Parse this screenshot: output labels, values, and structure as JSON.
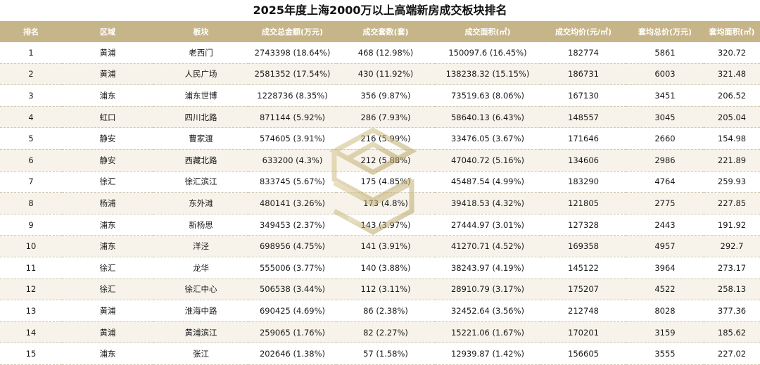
{
  "title": "2025年度上海2000万以上高端新房成交板块排名",
  "colors": {
    "header_bg": "#c7b58a",
    "stripe": "#f7f3ea",
    "watermark": "#c2ad6e"
  },
  "chart_data": {
    "type": "table",
    "title": "2025年度上海2000万以上高端新房成交板块排名",
    "columns": [
      "排名",
      "区域",
      "板块",
      "成交总金额(万元)",
      "成交套数(套)",
      "成交面积(㎡)",
      "成交均价(元/㎡)",
      "套均总价(万元)",
      "套均面积(㎡)"
    ],
    "rows": [
      [
        "1",
        "黄浦",
        "老西门",
        "2743398 (18.64%)",
        "468 (12.98%)",
        "150097.6 (16.45%)",
        "182774",
        "5861",
        "320.72"
      ],
      [
        "2",
        "黄浦",
        "人民广场",
        "2581352 (17.54%)",
        "430 (11.92%)",
        "138238.32 (15.15%)",
        "186731",
        "6003",
        "321.48"
      ],
      [
        "3",
        "浦东",
        "浦东世博",
        "1228736 (8.35%)",
        "356 (9.87%)",
        "73519.63 (8.06%)",
        "167130",
        "3451",
        "206.52"
      ],
      [
        "4",
        "虹口",
        "四川北路",
        "871144 (5.92%)",
        "286 (7.93%)",
        "58640.13 (6.43%)",
        "148557",
        "3045",
        "205.04"
      ],
      [
        "5",
        "静安",
        "曹家渡",
        "574605 (3.91%)",
        "216 (5.99%)",
        "33476.05 (3.67%)",
        "171646",
        "2660",
        "154.98"
      ],
      [
        "6",
        "静安",
        "西藏北路",
        "633200 (4.3%)",
        "212 (5.88%)",
        "47040.72 (5.16%)",
        "134606",
        "2986",
        "221.89"
      ],
      [
        "7",
        "徐汇",
        "徐汇滨江",
        "833745 (5.67%)",
        "175 (4.85%)",
        "45487.54 (4.99%)",
        "183290",
        "4764",
        "259.93"
      ],
      [
        "8",
        "杨浦",
        "东外滩",
        "480141 (3.26%)",
        "173 (4.8%)",
        "39418.53 (4.32%)",
        "121805",
        "2775",
        "227.85"
      ],
      [
        "9",
        "浦东",
        "新杨思",
        "349453 (2.37%)",
        "143 (3.97%)",
        "27444.97 (3.01%)",
        "127328",
        "2443",
        "191.92"
      ],
      [
        "10",
        "浦东",
        "洋泾",
        "698956 (4.75%)",
        "141 (3.91%)",
        "41270.71 (4.52%)",
        "169358",
        "4957",
        "292.7"
      ],
      [
        "11",
        "徐汇",
        "龙华",
        "555006 (3.77%)",
        "140 (3.88%)",
        "38243.97 (4.19%)",
        "145122",
        "3964",
        "273.17"
      ],
      [
        "12",
        "徐汇",
        "徐汇中心",
        "506538 (3.44%)",
        "112 (3.11%)",
        "28910.79 (3.17%)",
        "175207",
        "4522",
        "258.13"
      ],
      [
        "13",
        "黄浦",
        "淮海中路",
        "690425 (4.69%)",
        "86 (2.38%)",
        "32452.64 (3.56%)",
        "212748",
        "8028",
        "377.36"
      ],
      [
        "14",
        "黄浦",
        "黄浦滨江",
        "259065 (1.76%)",
        "82 (2.27%)",
        "15221.06 (1.67%)",
        "170201",
        "3159",
        "185.62"
      ],
      [
        "15",
        "浦东",
        "张江",
        "202646 (1.38%)",
        "57 (1.58%)",
        "12939.87 (1.42%)",
        "156605",
        "3555",
        "227.02"
      ]
    ]
  }
}
